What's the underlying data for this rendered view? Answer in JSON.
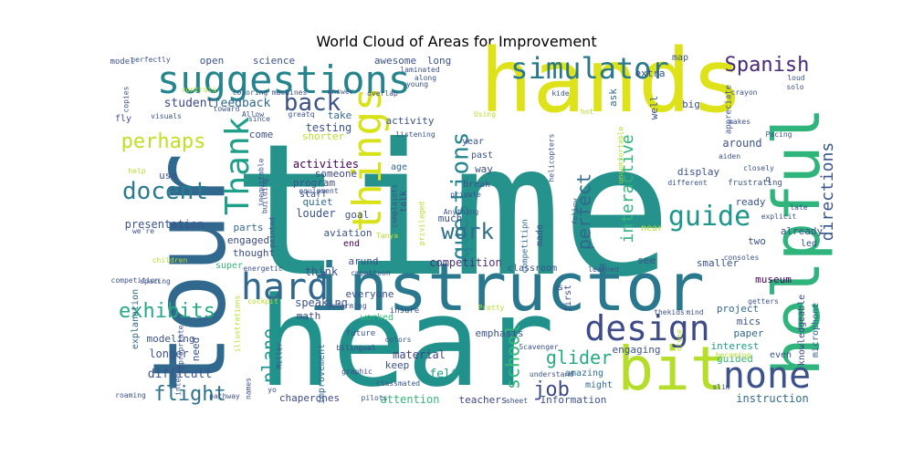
{
  "chart_data": {
    "type": "wordcloud",
    "title": "World Cloud of Areas for Improvement",
    "palette": [
      "#fde725",
      "#b5de2b",
      "#6ece58",
      "#35b779",
      "#1f9e89",
      "#26828e",
      "#31688e",
      "#3e4989",
      "#482878",
      "#440154"
    ],
    "words": [
      {
        "text": "time",
        "size": 200,
        "color": "#26928c"
      },
      {
        "text": "hear",
        "size": 135,
        "color": "#21918c"
      },
      {
        "text": "tour",
        "size": 110,
        "color": "#31688e"
      },
      {
        "text": "hands",
        "size": 96,
        "color": "#dde318"
      },
      {
        "text": "instructor",
        "size": 72,
        "color": "#2a788e"
      },
      {
        "text": "helpful",
        "size": 70,
        "color": "#2fb47c"
      },
      {
        "text": "bit",
        "size": 66,
        "color": "#b5de2b"
      },
      {
        "text": "suggestions",
        "size": 42,
        "color": "#25858e"
      },
      {
        "text": "things",
        "size": 44,
        "color": "#d8e219"
      },
      {
        "text": "hard",
        "size": 40,
        "color": "#31688e"
      },
      {
        "text": "design",
        "size": 38,
        "color": "#3e4c8a"
      },
      {
        "text": "none",
        "size": 40,
        "color": "#3b528b"
      },
      {
        "text": "simulator",
        "size": 32,
        "color": "#2a788e"
      },
      {
        "text": "Thank",
        "size": 36,
        "color": "#1f9e89"
      },
      {
        "text": "questions",
        "size": 26,
        "color": "#25858e"
      },
      {
        "text": "guide",
        "size": 30,
        "color": "#1f968b"
      },
      {
        "text": "back",
        "size": 26,
        "color": "#3b528b"
      },
      {
        "text": "docent",
        "size": 26,
        "color": "#287c8e"
      },
      {
        "text": "Spanish",
        "size": 22,
        "color": "#482878"
      },
      {
        "text": "perhaps",
        "size": 22,
        "color": "#c2df23"
      },
      {
        "text": "work",
        "size": 24,
        "color": "#2e6e8e"
      },
      {
        "text": "exhibits",
        "size": 22,
        "color": "#25ab82"
      },
      {
        "text": "flight",
        "size": 22,
        "color": "#2c728e"
      },
      {
        "text": "perfect",
        "size": 20,
        "color": "#31688e"
      },
      {
        "text": "directions",
        "size": 18,
        "color": "#39568c"
      },
      {
        "text": "interactive",
        "size": 18,
        "color": "#2fb47c"
      },
      {
        "text": "plane",
        "size": 20,
        "color": "#1f968b"
      },
      {
        "text": "school",
        "size": 20,
        "color": "#35b779"
      },
      {
        "text": "glider",
        "size": 20,
        "color": "#25ab82"
      },
      {
        "text": "job",
        "size": 22,
        "color": "#3e4989"
      },
      {
        "text": "student",
        "size": 13,
        "color": "#3e4989"
      },
      {
        "text": "feedback",
        "size": 13,
        "color": "#31688e"
      },
      {
        "text": "presentation",
        "size": 12,
        "color": "#3b528b"
      },
      {
        "text": "difficult",
        "size": 13,
        "color": "#3b528b"
      },
      {
        "text": "competition",
        "size": 12,
        "color": "#46337e"
      },
      {
        "text": "attention",
        "size": 12,
        "color": "#35b779"
      },
      {
        "text": "chaperones",
        "size": 11,
        "color": "#3e4989"
      },
      {
        "text": "teachers",
        "size": 11,
        "color": "#414487"
      },
      {
        "text": "Information",
        "size": 11,
        "color": "#3b528b"
      },
      {
        "text": "instruction",
        "size": 12,
        "color": "#31688e"
      },
      {
        "text": "knowledgeable",
        "size": 10,
        "color": "#3e4989"
      },
      {
        "text": "microphone",
        "size": 10,
        "color": "#31688e"
      },
      {
        "text": "museum",
        "size": 11,
        "color": "#440154"
      },
      {
        "text": "project",
        "size": 11,
        "color": "#31688e"
      },
      {
        "text": "mics",
        "size": 11,
        "color": "#3b528b"
      },
      {
        "text": "paper",
        "size": 11,
        "color": "#31688e"
      },
      {
        "text": "interest",
        "size": 11,
        "color": "#1f9e89"
      },
      {
        "text": "guided",
        "size": 11,
        "color": "#35b779"
      },
      {
        "text": "engaging",
        "size": 11,
        "color": "#3b528b"
      },
      {
        "text": "emphasis",
        "size": 11,
        "color": "#3b528b"
      },
      {
        "text": "material",
        "size": 12,
        "color": "#414487"
      },
      {
        "text": "felt",
        "size": 13,
        "color": "#1f9e89"
      },
      {
        "text": "keep",
        "size": 11,
        "color": "#3b528b"
      },
      {
        "text": "amazing",
        "size": 10,
        "color": "#2c728e"
      },
      {
        "text": "might",
        "size": 10,
        "color": "#31688e"
      },
      {
        "text": "improvement",
        "size": 10,
        "color": "#31688e"
      },
      {
        "text": "worked",
        "size": 10,
        "color": "#35b779"
      },
      {
        "text": "everyone",
        "size": 11,
        "color": "#3b528b"
      },
      {
        "text": "speaking",
        "size": 12,
        "color": "#3b528b"
      },
      {
        "text": "math",
        "size": 11,
        "color": "#3e4989"
      },
      {
        "text": "think",
        "size": 12,
        "color": "#3b528b"
      },
      {
        "text": "modeling",
        "size": 11,
        "color": "#3b528b"
      },
      {
        "text": "longer",
        "size": 12,
        "color": "#3b528b"
      },
      {
        "text": "need",
        "size": 11,
        "color": "#3b528b"
      },
      {
        "text": "explanation",
        "size": 10,
        "color": "#31688e"
      },
      {
        "text": "engaged",
        "size": 11,
        "color": "#3e4989"
      },
      {
        "text": "parts",
        "size": 11,
        "color": "#31688e"
      },
      {
        "text": "thought",
        "size": 11,
        "color": "#3e4989"
      },
      {
        "text": "louder",
        "size": 12,
        "color": "#3b528b"
      },
      {
        "text": "program",
        "size": 11,
        "color": "#3b528b"
      },
      {
        "text": "quiet",
        "size": 11,
        "color": "#31688e"
      },
      {
        "text": "goal",
        "size": 11,
        "color": "#3b528b"
      },
      {
        "text": "activities",
        "size": 12,
        "color": "#440154"
      },
      {
        "text": "staff",
        "size": 10,
        "color": "#3b528b"
      },
      {
        "text": "someone",
        "size": 11,
        "color": "#3e4989"
      },
      {
        "text": "testing",
        "size": 12,
        "color": "#3b528b"
      },
      {
        "text": "shorter",
        "size": 11,
        "color": "#b5de2b"
      },
      {
        "text": "come",
        "size": 11,
        "color": "#3b528b"
      },
      {
        "text": "take",
        "size": 11,
        "color": "#31688e"
      },
      {
        "text": "activity",
        "size": 11,
        "color": "#3b528b"
      },
      {
        "text": "awesome",
        "size": 11,
        "color": "#3b528b"
      },
      {
        "text": "long",
        "size": 11,
        "color": "#3b528b"
      },
      {
        "text": "science",
        "size": 11,
        "color": "#3b528b"
      },
      {
        "text": "open",
        "size": 11,
        "color": "#3b528b"
      },
      {
        "text": "use",
        "size": 11,
        "color": "#3b528b"
      },
      {
        "text": "map",
        "size": 10,
        "color": "#3b528b"
      },
      {
        "text": "extra",
        "size": 11,
        "color": "#3e4989"
      },
      {
        "text": "ask",
        "size": 11,
        "color": "#31688e"
      },
      {
        "text": "well",
        "size": 11,
        "color": "#3b528b"
      },
      {
        "text": "big",
        "size": 11,
        "color": "#3b528b"
      },
      {
        "text": "around",
        "size": 12,
        "color": "#3b528b"
      },
      {
        "text": "display",
        "size": 11,
        "color": "#3b528b"
      },
      {
        "text": "ready",
        "size": 11,
        "color": "#3b528b"
      },
      {
        "text": "already",
        "size": 11,
        "color": "#3b528b"
      },
      {
        "text": "two",
        "size": 11,
        "color": "#3b528b"
      },
      {
        "text": "led",
        "size": 10,
        "color": "#3b528b"
      },
      {
        "text": "smaller",
        "size": 11,
        "color": "#3b528b"
      },
      {
        "text": "see",
        "size": 11,
        "color": "#3b528b"
      },
      {
        "text": "near",
        "size": 10,
        "color": "#b5de2b"
      },
      {
        "text": "made",
        "size": 10,
        "color": "#3b528b"
      },
      {
        "text": "classroom",
        "size": 10,
        "color": "#3b528b"
      },
      {
        "text": "competitipn",
        "size": 9,
        "color": "#31688e"
      },
      {
        "text": "arund",
        "size": 11,
        "color": "#3b528b"
      },
      {
        "text": "end",
        "size": 10,
        "color": "#440154"
      },
      {
        "text": "aviation",
        "size": 11,
        "color": "#3b528b"
      },
      {
        "text": "much",
        "size": 11,
        "color": "#3b528b"
      },
      {
        "text": "year",
        "size": 10,
        "color": "#3b528b"
      },
      {
        "text": "past",
        "size": 10,
        "color": "#3b528b"
      },
      {
        "text": "way",
        "size": 11,
        "color": "#3b528b"
      },
      {
        "text": "break",
        "size": 10,
        "color": "#3b528b"
      },
      {
        "text": "age",
        "size": 10,
        "color": "#31688e"
      },
      {
        "text": "talk",
        "size": 10,
        "color": "#3e4989"
      },
      {
        "text": "super",
        "size": 10,
        "color": "#35b779"
      },
      {
        "text": "first",
        "size": 10,
        "color": "#3e4989"
      },
      {
        "text": "us",
        "size": 10,
        "color": "#3b528b"
      },
      {
        "text": "future",
        "size": 9,
        "color": "#3b528b"
      },
      {
        "text": "colors",
        "size": 8,
        "color": "#3b528b"
      },
      {
        "text": "bilingual",
        "size": 8,
        "color": "#3e4989"
      },
      {
        "text": "graphic",
        "size": 8,
        "color": "#3e4989"
      },
      {
        "text": "pilots",
        "size": 8,
        "color": "#3b528b"
      },
      {
        "text": "sheet",
        "size": 8,
        "color": "#3b528b"
      },
      {
        "text": "understand",
        "size": 8,
        "color": "#3b528b"
      },
      {
        "text": "insure",
        "size": 9,
        "color": "#3b528b"
      },
      {
        "text": "Pretty",
        "size": 8,
        "color": "#b5de2b"
      },
      {
        "text": "Informing",
        "size": 8,
        "color": "#3b528b"
      },
      {
        "text": "cmpettoon",
        "size": 8,
        "color": "#3b528b"
      },
      {
        "text": "energetic",
        "size": 8,
        "color": "#3b528b"
      },
      {
        "text": "Scavenger",
        "size": 8,
        "color": "#3b528b"
      },
      {
        "text": "thekids",
        "size": 8,
        "color": "#3b528b"
      },
      {
        "text": "getters",
        "size": 8,
        "color": "#3b528b"
      },
      {
        "text": "consoles",
        "size": 8,
        "color": "#3b528b"
      },
      {
        "text": "frustrating",
        "size": 9,
        "color": "#3b528b"
      },
      {
        "text": "different",
        "size": 8,
        "color": "#3b528b"
      },
      {
        "text": "closely",
        "size": 8,
        "color": "#3b528b"
      },
      {
        "text": "aiden",
        "size": 8,
        "color": "#3b528b"
      },
      {
        "text": "explicit",
        "size": 8,
        "color": "#3b528b"
      },
      {
        "text": "late",
        "size": 8,
        "color": "#3b528b"
      },
      {
        "text": "makes",
        "size": 8,
        "color": "#3b528b"
      },
      {
        "text": "Pacing",
        "size": 8,
        "color": "#3b528b"
      },
      {
        "text": "crayon",
        "size": 8,
        "color": "#3b528b"
      },
      {
        "text": "solo",
        "size": 8,
        "color": "#3b528b"
      },
      {
        "text": "loud",
        "size": 8,
        "color": "#3b528b"
      },
      {
        "text": "appreciate",
        "size": 9,
        "color": "#3b528b"
      },
      {
        "text": "helicopters",
        "size": 8,
        "color": "#3b528b"
      },
      {
        "text": "kide",
        "size": 8,
        "color": "#3b528b"
      },
      {
        "text": "Using",
        "size": 8,
        "color": "#b5de2b"
      },
      {
        "text": "listening",
        "size": 8,
        "color": "#3b528b"
      },
      {
        "text": "private",
        "size": 8,
        "color": "#3b528b"
      },
      {
        "text": "Anything",
        "size": 8,
        "color": "#3b528b"
      },
      {
        "text": "young",
        "size": 8,
        "color": "#3b528b"
      },
      {
        "text": "along",
        "size": 8,
        "color": "#3b528b"
      },
      {
        "text": "laminated",
        "size": 8,
        "color": "#3b528b"
      },
      {
        "text": "overlap",
        "size": 8,
        "color": "#3b528b"
      },
      {
        "text": "answer",
        "size": 8,
        "color": "#3b528b"
      },
      {
        "text": "greatq",
        "size": 8,
        "color": "#3b528b"
      },
      {
        "text": "since",
        "size": 8,
        "color": "#3b528b"
      },
      {
        "text": "Allow",
        "size": 8,
        "color": "#3b528b"
      },
      {
        "text": "toward",
        "size": 8,
        "color": "#3b528b"
      },
      {
        "text": "coloring",
        "size": 8,
        "color": "#3b528b"
      },
      {
        "text": "machines",
        "size": 8,
        "color": "#3b528b"
      },
      {
        "text": "controls",
        "size": 8,
        "color": "#b5de2b"
      },
      {
        "text": "perfectly",
        "size": 8,
        "color": "#3b528b"
      },
      {
        "text": "model",
        "size": 9,
        "color": "#3b528b"
      },
      {
        "text": "copies",
        "size": 8,
        "color": "#3b528b"
      },
      {
        "text": "fly",
        "size": 10,
        "color": "#3b528b"
      },
      {
        "text": "visuals",
        "size": 8,
        "color": "#3b528b"
      },
      {
        "text": "help",
        "size": 8,
        "color": "#b5de2b"
      },
      {
        "text": "building",
        "size": 8,
        "color": "#3b528b"
      },
      {
        "text": "equipment",
        "size": 8,
        "color": "#3b528b"
      },
      {
        "text": "complaints",
        "size": 8,
        "color": "#3b528b"
      },
      {
        "text": "privileged",
        "size": 8,
        "color": "#b5de2b"
      },
      {
        "text": "Tanya",
        "size": 8,
        "color": "#b5de2b"
      },
      {
        "text": "pointed",
        "size": 8,
        "color": "#3b528b"
      },
      {
        "text": "children",
        "size": 8,
        "color": "#b5de2b"
      },
      {
        "text": "we're",
        "size": 8,
        "color": "#3b528b"
      },
      {
        "text": "spacing",
        "size": 8,
        "color": "#3b528b"
      },
      {
        "text": "competition",
        "size": 8,
        "color": "#3b528b"
      },
      {
        "text": "cockpit",
        "size": 8,
        "color": "#b5de2b"
      },
      {
        "text": "illustrations",
        "size": 8,
        "color": "#b5de2b"
      },
      {
        "text": "intense",
        "size": 8,
        "color": "#3b528b"
      },
      {
        "text": "appropriate",
        "size": 8,
        "color": "#3b528b"
      },
      {
        "text": "roaming",
        "size": 8,
        "color": "#3b528b"
      },
      {
        "text": "Miller",
        "size": 8,
        "color": "#3b528b"
      },
      {
        "text": "pathway",
        "size": 8,
        "color": "#3b528b"
      },
      {
        "text": "names",
        "size": 8,
        "color": "#3b528b"
      },
      {
        "text": "yo",
        "size": 8,
        "color": "#3b528b"
      },
      {
        "text": "classmated",
        "size": 8,
        "color": "#3b528b"
      },
      {
        "text": "learned",
        "size": 8,
        "color": "#3b528b"
      },
      {
        "text": "drone",
        "size": 8,
        "color": "#b5de2b"
      },
      {
        "text": "mind",
        "size": 8,
        "color": "#3b528b"
      },
      {
        "text": "slim",
        "size": 8,
        "color": "#3b528b"
      },
      {
        "text": "becoming",
        "size": 8,
        "color": "#b5de2b"
      },
      {
        "text": "even",
        "size": 10,
        "color": "#3b528b"
      },
      {
        "text": "uncomfortable",
        "size": 8,
        "color": "#b5de2b"
      },
      {
        "text": "follow",
        "size": 8,
        "color": "#3b528b"
      },
      {
        "text": "inequitable",
        "size": 8,
        "color": "#3b528b"
      },
      {
        "text": "hot",
        "size": 8,
        "color": "#b5de2b"
      },
      {
        "text": "q",
        "size": 9,
        "color": "#3b528b"
      }
    ]
  }
}
